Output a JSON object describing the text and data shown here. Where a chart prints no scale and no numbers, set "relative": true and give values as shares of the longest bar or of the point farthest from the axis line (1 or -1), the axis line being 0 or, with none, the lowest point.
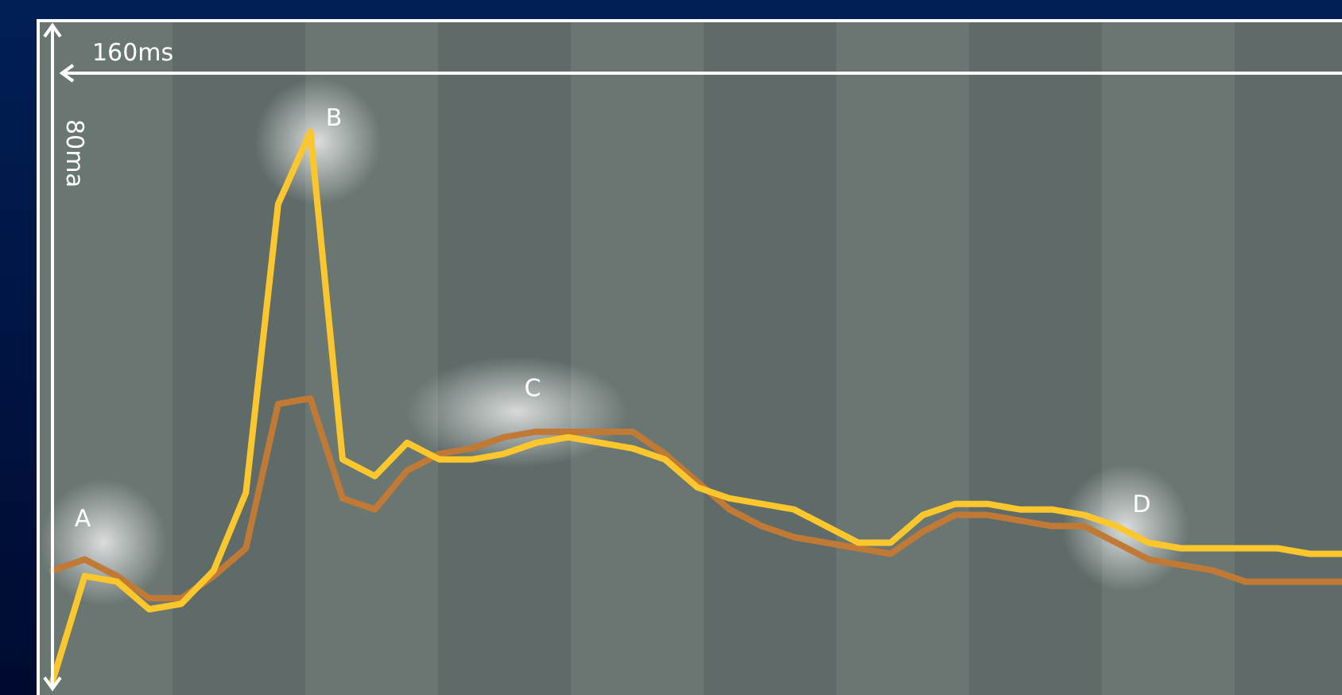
{
  "chart_data": {
    "type": "line",
    "relative": true,
    "xlabel": "160ms",
    "ylabel": "80ma",
    "marker": "none",
    "line_style": "solid",
    "categories": [
      null,
      null,
      null,
      null,
      null,
      null,
      null,
      null,
      null,
      null,
      null,
      null,
      null,
      null,
      null,
      null,
      null,
      null,
      null,
      null,
      null,
      null,
      null,
      null,
      null,
      null,
      null,
      null,
      null,
      null,
      null,
      null,
      null,
      null,
      null,
      null,
      null,
      null,
      null,
      null,
      null
    ],
    "series": [
      {
        "color": "#c07a36",
        "values": [
          0.21,
          0.23,
          0.2,
          0.16,
          0.16,
          0.2,
          0.25,
          0.51,
          0.52,
          0.34,
          0.32,
          0.39,
          0.42,
          0.43,
          0.45,
          0.46,
          0.46,
          0.46,
          0.46,
          0.42,
          0.37,
          0.32,
          0.29,
          0.27,
          0.26,
          0.25,
          0.24,
          0.28,
          0.31,
          0.31,
          0.3,
          0.29,
          0.29,
          0.26,
          0.23,
          0.22,
          0.21,
          0.19,
          0.19,
          0.19,
          0.19
        ]
      },
      {
        "color": "#fcc72c",
        "values": [
          0.01,
          0.2,
          0.19,
          0.14,
          0.15,
          0.21,
          0.35,
          0.87,
          1.0,
          0.41,
          0.38,
          0.44,
          0.41,
          0.41,
          0.42,
          0.44,
          0.45,
          0.44,
          0.43,
          0.41,
          0.36,
          0.34,
          0.33,
          0.32,
          0.29,
          0.26,
          0.26,
          0.31,
          0.33,
          0.33,
          0.32,
          0.32,
          0.31,
          0.29,
          0.26,
          0.25,
          0.25,
          0.25,
          0.25,
          0.24,
          0.24
        ]
      }
    ],
    "annotations": [
      "A",
      "B",
      "C",
      "D"
    ]
  }
}
